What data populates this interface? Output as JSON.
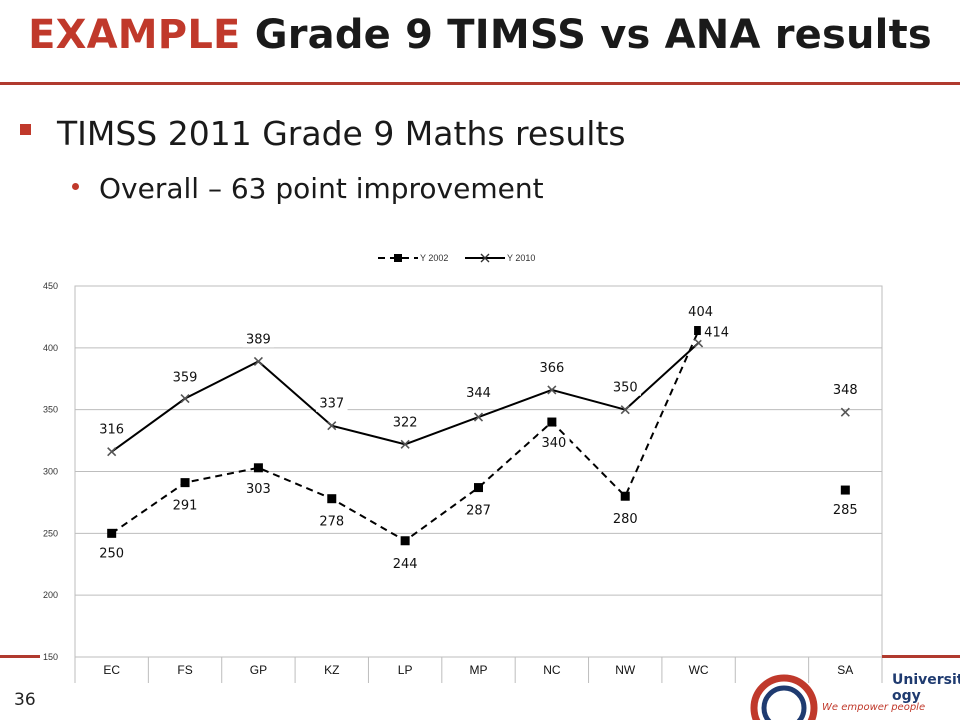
{
  "slide": {
    "title_accent": "EXAMPLE",
    "title_rest": "Grade 9 TIMSS vs ANA results",
    "bullet_main": "TIMSS 2011 Grade 9 Maths results",
    "bullet_sub": "Overall – 63 point improvement",
    "slide_number": "36",
    "logo_line1": "University",
    "logo_line2": "ogy",
    "logo_tagline": "We empower people"
  },
  "colors": {
    "accent": "#c0392b",
    "rule": "#b03a2e"
  },
  "chart_data": {
    "type": "line",
    "categories": [
      "EC",
      "FS",
      "GP",
      "KZ",
      "LP",
      "MP",
      "NC",
      "NW",
      "WC",
      "",
      "SA"
    ],
    "ylim": [
      150,
      450
    ],
    "yticks": [
      150,
      200,
      250,
      300,
      350,
      400,
      450
    ],
    "grid": true,
    "legend_position": "top",
    "series": [
      {
        "name": "Y 2002",
        "style": "dashed",
        "marker": "square",
        "values": [
          250,
          291,
          303,
          278,
          244,
          287,
          340,
          280,
          414,
          null,
          285
        ],
        "labels": [
          "250",
          "291",
          "303",
          "278",
          "244",
          "287",
          "340",
          "280",
          "414",
          "",
          "285"
        ]
      },
      {
        "name": "Y 2010",
        "style": "solid",
        "marker": "x",
        "values": [
          316,
          359,
          389,
          337,
          322,
          344,
          366,
          350,
          404,
          null,
          348
        ],
        "labels": [
          "316",
          "359",
          "389",
          "337",
          "322",
          "344",
          "366",
          "350",
          "404",
          "",
          "348"
        ]
      }
    ]
  }
}
